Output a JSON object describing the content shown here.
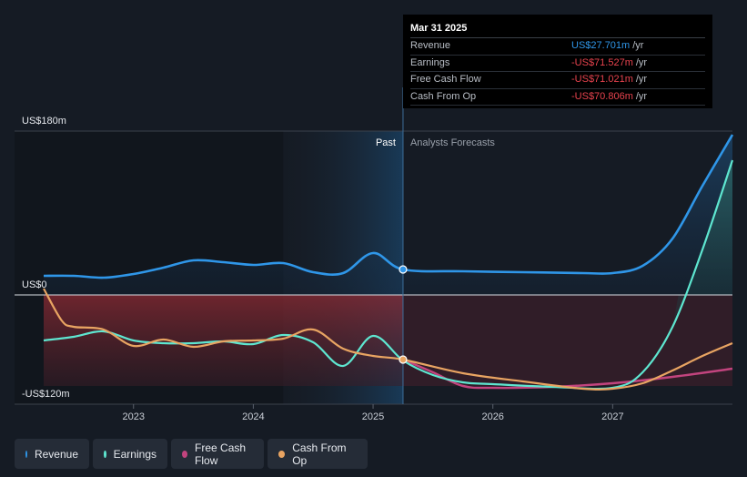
{
  "tooltip": {
    "date": "Mar 31 2025",
    "rows": [
      {
        "label": "Revenue",
        "value": "US$27.701m",
        "unit": "/yr",
        "color": "#2f96e8"
      },
      {
        "label": "Earnings",
        "value": "-US$71.527m",
        "unit": "/yr",
        "color": "#e8434e"
      },
      {
        "label": "Free Cash Flow",
        "value": "-US$71.021m",
        "unit": "/yr",
        "color": "#e8434e"
      },
      {
        "label": "Cash From Op",
        "value": "-US$70.806m",
        "unit": "/yr",
        "color": "#e8434e"
      }
    ]
  },
  "legend": [
    {
      "label": "Revenue",
      "color": "#2f96e8"
    },
    {
      "label": "Earnings",
      "color": "#5ee6d0"
    },
    {
      "label": "Free Cash Flow",
      "color": "#c2447e"
    },
    {
      "label": "Cash From Op",
      "color": "#e8a462"
    }
  ],
  "chart_data": {
    "type": "line",
    "y_tick_labels": [
      "US$180m",
      "US$0",
      "-US$120m"
    ],
    "ylim": [
      -120,
      180
    ],
    "xlim": [
      2022.25,
      2028.0
    ],
    "x_tick_labels": [
      "2023",
      "2024",
      "2025",
      "2026",
      "2027"
    ],
    "x_ticks": [
      2023,
      2024,
      2025,
      2026,
      2027
    ],
    "past_label": "Past",
    "forecast_label": "Analysts Forecasts",
    "past_end": 2025.25,
    "shaded_start": 2024.25,
    "colors": {
      "revenue": "#2f96e8",
      "earnings": "#5ee6d0",
      "fcf": "#c2447e",
      "cfo": "#e8a462"
    },
    "series": [
      {
        "name": "Revenue",
        "color": "#2f96e8",
        "x": [
          2022.25,
          2022.5,
          2022.75,
          2023.0,
          2023.25,
          2023.5,
          2023.75,
          2024.0,
          2024.25,
          2024.5,
          2024.75,
          2025.0,
          2025.25,
          2025.75,
          2026.25,
          2026.75,
          2027.0,
          2027.25,
          2027.5,
          2027.75,
          2028.0
        ],
        "y": [
          21,
          21,
          19,
          23,
          30,
          38,
          36,
          33,
          35,
          25,
          24,
          46,
          28,
          26,
          25,
          24,
          24,
          32,
          62,
          120,
          176
        ]
      },
      {
        "name": "Earnings",
        "color": "#5ee6d0",
        "x": [
          2022.25,
          2022.5,
          2022.75,
          2023.0,
          2023.25,
          2023.5,
          2023.75,
          2024.0,
          2024.25,
          2024.5,
          2024.75,
          2025.0,
          2025.25,
          2025.5,
          2025.75,
          2026.0,
          2026.5,
          2027.0,
          2027.25,
          2027.5,
          2027.75,
          2028.0
        ],
        "y": [
          -50,
          -46,
          -40,
          -50,
          -53,
          -53,
          -51,
          -54,
          -44,
          -52,
          -78,
          -45,
          -72,
          -88,
          -96,
          -98,
          -101,
          -102,
          -85,
          -35,
          50,
          148
        ]
      },
      {
        "name": "Free Cash Flow",
        "color": "#c2447e",
        "x": [
          2025.25,
          2025.5,
          2025.75,
          2026.0,
          2026.5,
          2027.0,
          2027.5,
          2028.0
        ],
        "y": [
          -71,
          -85,
          -100,
          -102,
          -101,
          -97,
          -90,
          -81
        ]
      },
      {
        "name": "Cash From Op",
        "color": "#e8a462",
        "x": [
          2022.25,
          2022.4,
          2022.5,
          2022.75,
          2023.0,
          2023.25,
          2023.5,
          2023.75,
          2024.0,
          2024.25,
          2024.5,
          2024.75,
          2025.0,
          2025.25,
          2025.75,
          2026.25,
          2026.75,
          2027.0,
          2027.25,
          2027.5,
          2027.75,
          2028.0
        ],
        "y": [
          7,
          -28,
          -35,
          -38,
          -56,
          -49,
          -57,
          -51,
          -50,
          -48,
          -38,
          -59,
          -67,
          -71,
          -86,
          -95,
          -103,
          -103,
          -97,
          -83,
          -67,
          -53
        ]
      }
    ],
    "highlight_x": 2025.25,
    "highlight_points": [
      {
        "series": "Revenue",
        "y": 28
      },
      {
        "series": "Cash From Op",
        "y": -71
      }
    ]
  }
}
